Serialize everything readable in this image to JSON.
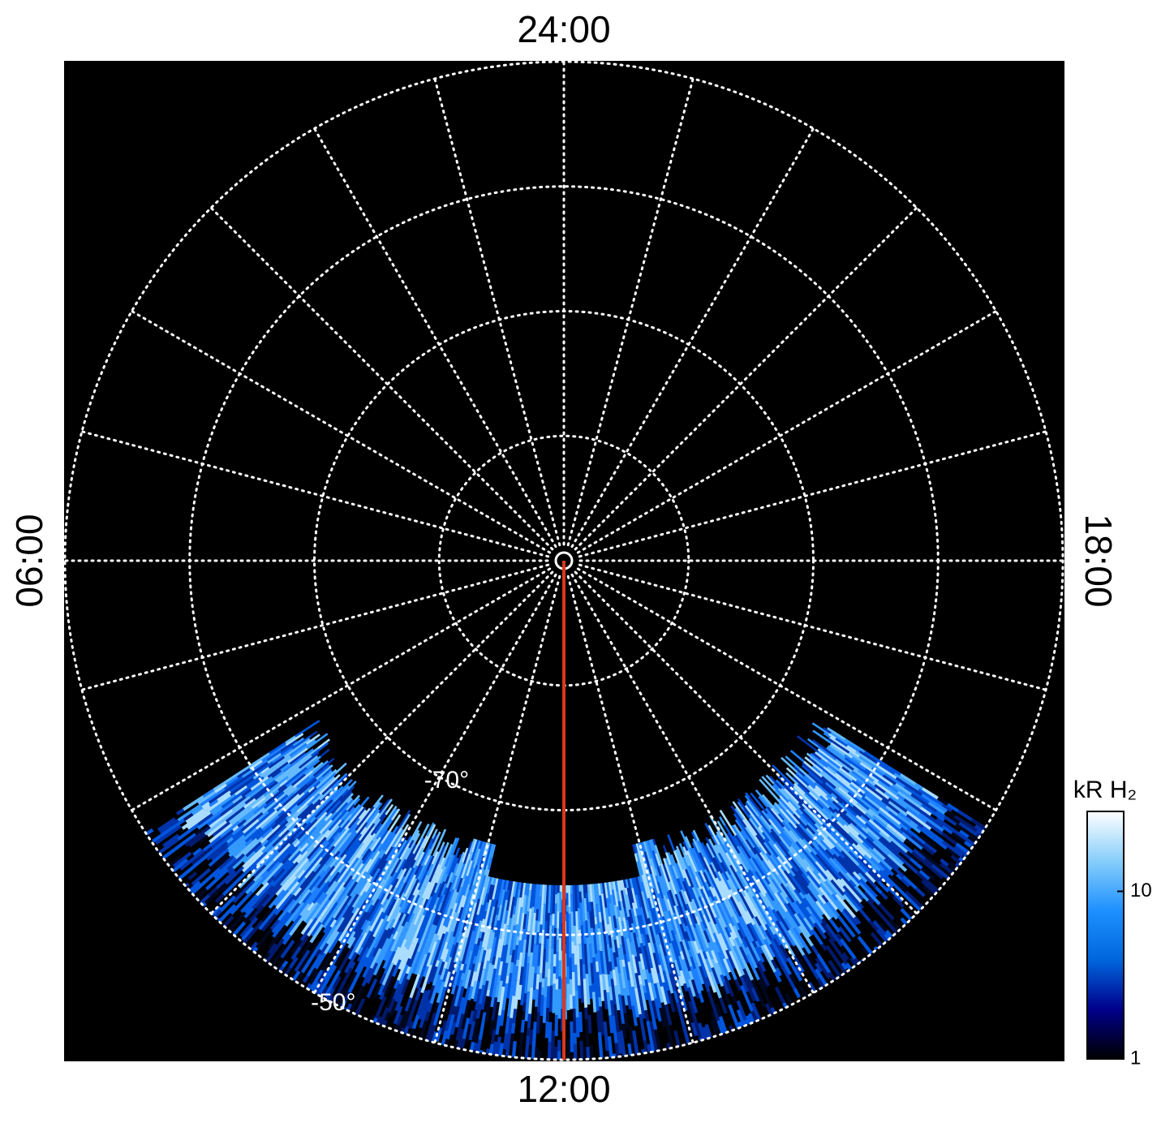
{
  "chart_data": {
    "type": "polar-image",
    "lt_labels": [
      {
        "value": 24,
        "label": "24:00"
      },
      {
        "value": 6,
        "label": "06:00"
      },
      {
        "value": 12,
        "label": "12:00"
      },
      {
        "value": 18,
        "label": "18:00"
      }
    ],
    "lt_grid": [
      0,
      1,
      2,
      3,
      4,
      5,
      6,
      7,
      8,
      9,
      10,
      11,
      12,
      13,
      14,
      15,
      16,
      17,
      18,
      19,
      20,
      21,
      22,
      23
    ],
    "rlim": [
      -90,
      -50
    ],
    "rgrid": [
      -80,
      -70,
      -60,
      -50
    ],
    "rlabels": [
      {
        "value": -70,
        "label": "-70°"
      },
      {
        "value": -50,
        "label": "-50°"
      }
    ],
    "lt_line": {
      "value": 12,
      "color": "#d9381e"
    },
    "colorbar": {
      "label": "kR H₂",
      "log": true,
      "lim": [
        1,
        30
      ],
      "ticks": [
        {
          "value": 1,
          "label": "1"
        },
        {
          "value": 10,
          "label": "10"
        }
      ],
      "colors": [
        "#000000",
        "#00008b",
        "#0066dd",
        "#1e90ff",
        "#87cefa",
        "#ffffff"
      ]
    }
  }
}
